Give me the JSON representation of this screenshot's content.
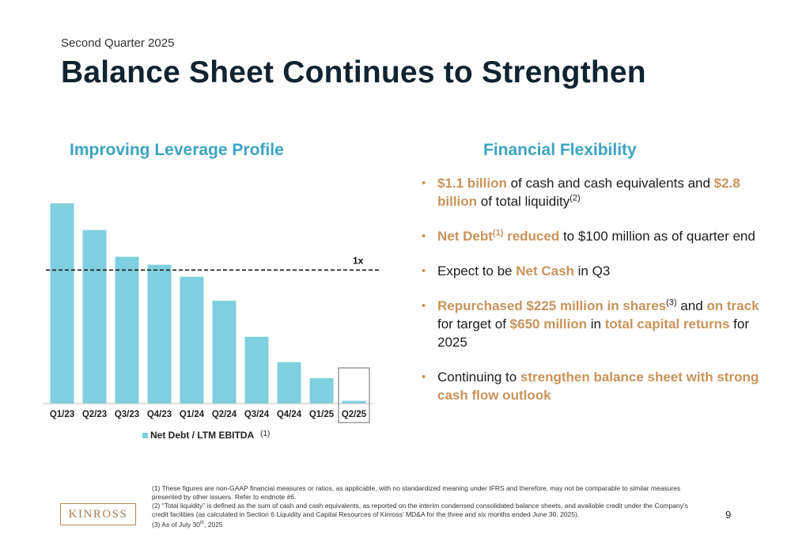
{
  "header": {
    "subtitle": "Second Quarter 2025",
    "title": "Balance Sheet Continues to Strengthen"
  },
  "left": {
    "heading": "Improving Leverage Profile"
  },
  "right": {
    "heading": "Financial Flexibility"
  },
  "chart_data": {
    "type": "bar",
    "categories": [
      "Q1/23",
      "Q2/23",
      "Q3/23",
      "Q4/23",
      "Q1/24",
      "Q2/24",
      "Q3/24",
      "Q4/24",
      "Q1/25",
      "Q2/25"
    ],
    "series": [
      {
        "name": "Net Debt / LTM EBITDA",
        "values": [
          1.5,
          1.3,
          1.1,
          1.04,
          0.95,
          0.77,
          0.5,
          0.31,
          0.19,
          0.02
        ]
      }
    ],
    "ylim": [
      0,
      1.5
    ],
    "reference_line": {
      "value": 1.0,
      "label": "1x",
      "style": "dashed"
    },
    "highlighted_category": "Q2/25",
    "legend": {
      "label": "Net Debt / LTM EBITDA",
      "note": "(1)",
      "placement": "bottom"
    },
    "bar_color": "#7ecfdf",
    "axis_labels_visible": false
  },
  "bullets": [
    [
      {
        "t": "$1.1 billion",
        "h": true
      },
      {
        "t": " of cash and cash equivalents and "
      },
      {
        "t": "$2.8 billion",
        "h": true
      },
      {
        "t": " of total liquidity"
      },
      {
        "t": "(2)",
        "sup": true
      }
    ],
    [
      {
        "t": "Net Debt",
        "h": true
      },
      {
        "t": "(1)",
        "sup": true,
        "h": true
      },
      {
        "t": " reduced",
        "h": true
      },
      {
        "t": " to $100 million as of quarter end"
      }
    ],
    [
      {
        "t": "Expect to be "
      },
      {
        "t": "Net Cash",
        "h": true
      },
      {
        "t": " in Q3"
      }
    ],
    [
      {
        "t": "Repurchased $225 million in shares",
        "h": true
      },
      {
        "t": "(3)",
        "sup": true
      },
      {
        "t": " and "
      },
      {
        "t": "on track",
        "h": true
      },
      {
        "t": " for target of "
      },
      {
        "t": "$650 million",
        "h": true
      },
      {
        "t": " in "
      },
      {
        "t": "total capital returns",
        "h": true
      },
      {
        "t": " for 2025"
      }
    ],
    [
      {
        "t": "Continuing to "
      },
      {
        "t": "strengthen balance sheet with strong cash flow outlook",
        "h": true
      }
    ]
  ],
  "footnotes": {
    "f1": "(1)  These figures are non-GAAP financial measures or ratios, as applicable, with no standardized meaning under IFRS and therefore, may not be comparable to similar measures presented by other issuers. Refer to endnote #6.",
    "f2": "(2) “Total liquidity” is defined as the sum of cash and cash equivalents, as reported on the interim condensed consolidated balance sheets, and available credit under the Company’s credit facilities (as calculated in Section 6 Liquidity and Capital Resources of Kinross’ MD&A for the three and six months ended June 30, 2025).",
    "f3_pre": "(3) As of July 30",
    "f3_sup": "th",
    "f3_post": ", 2025"
  },
  "logo": {
    "text": "KINROSS"
  },
  "page_number": "9",
  "colors": {
    "accent_blue": "#3ba4c2",
    "accent_gold": "#c9935a",
    "title_dark": "#0f2430"
  }
}
